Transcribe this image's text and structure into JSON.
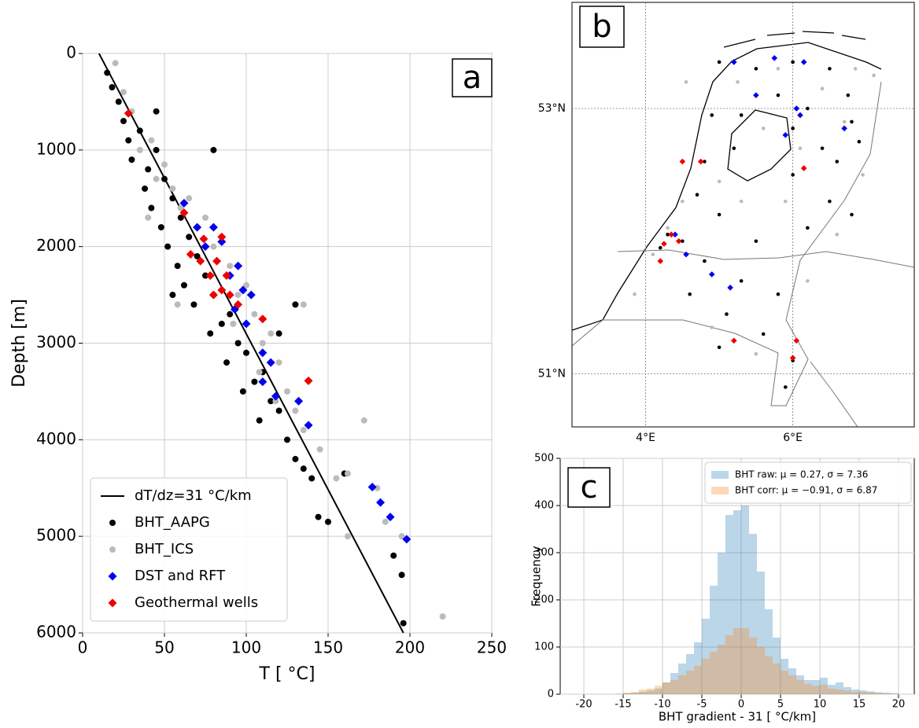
{
  "chart_data": [
    {
      "type": "scatter",
      "label": "a",
      "xlabel": "T [ °C]",
      "ylabel": "Depth [m]",
      "xlim": [
        0,
        250
      ],
      "ylim": [
        6000,
        0
      ],
      "xticks": [
        0,
        50,
        100,
        150,
        200,
        250
      ],
      "yticks": [
        0,
        1000,
        2000,
        3000,
        4000,
        5000,
        6000
      ],
      "grid": true,
      "legend": "lower left",
      "series": [
        {
          "name": "dT/dz=31 °C/km",
          "color": "#000000",
          "marker": "line",
          "x": [
            10,
            196
          ],
          "values": [
            0,
            6000
          ]
        },
        {
          "name": "BHT_AAPG",
          "color": "#000000",
          "marker": "circle",
          "x": [
            15,
            18,
            22,
            25,
            28,
            35,
            30,
            40,
            45,
            38,
            50,
            42,
            55,
            48,
            60,
            52,
            65,
            58,
            70,
            62,
            75,
            68,
            80,
            85,
            78,
            90,
            95,
            88,
            100,
            105,
            98,
            110,
            115,
            108,
            120,
            125,
            130,
            135,
            140,
            144,
            150,
            160,
            190,
            195,
            196,
            45,
            80,
            130,
            120,
            55
          ],
          "values": [
            200,
            350,
            500,
            700,
            900,
            800,
            1100,
            1200,
            1000,
            1400,
            1300,
            1600,
            1500,
            1800,
            1700,
            2000,
            1900,
            2200,
            2100,
            2400,
            2300,
            2600,
            2500,
            2800,
            2900,
            2700,
            3000,
            3200,
            3100,
            3400,
            3500,
            3300,
            3600,
            3800,
            3700,
            4000,
            4200,
            4300,
            4400,
            4800,
            4850,
            4350,
            5200,
            5400,
            5900,
            600,
            1000,
            2600,
            2900,
            2500
          ]
        },
        {
          "name": "BHT_ICS",
          "color": "#bbbbbb",
          "marker": "circle",
          "x": [
            20,
            25,
            30,
            35,
            42,
            45,
            50,
            55,
            60,
            65,
            70,
            75,
            80,
            85,
            78,
            90,
            95,
            100,
            92,
            105,
            110,
            115,
            108,
            120,
            125,
            118,
            130,
            135,
            145,
            155,
            162,
            172,
            180,
            185,
            195,
            220,
            135,
            58,
            40,
            162
          ],
          "values": [
            100,
            400,
            600,
            1000,
            900,
            1300,
            1150,
            1400,
            1600,
            1500,
            1800,
            1700,
            2000,
            1900,
            2300,
            2200,
            2500,
            2400,
            2800,
            2700,
            3000,
            2900,
            3300,
            3200,
            3500,
            3600,
            3700,
            3900,
            4100,
            4400,
            4350,
            3800,
            4500,
            4850,
            5000,
            5830,
            2600,
            2600,
            1700,
            5000
          ]
        },
        {
          "name": "DST and RFT",
          "color": "#0000ee",
          "marker": "diamond",
          "x": [
            62,
            70,
            75,
            80,
            85,
            90,
            95,
            98,
            93,
            100,
            103,
            110,
            115,
            110,
            118,
            132,
            138,
            177,
            182,
            188,
            198
          ],
          "values": [
            1550,
            1800,
            2000,
            1800,
            1950,
            2300,
            2200,
            2450,
            2650,
            2800,
            2500,
            3100,
            3200,
            3400,
            3550,
            3600,
            3850,
            4490,
            4650,
            4800,
            5030
          ]
        },
        {
          "name": "Geothermal wells",
          "color": "#ee0000",
          "marker": "diamond",
          "x": [
            28,
            62,
            74,
            85,
            66,
            82,
            78,
            88,
            85,
            80,
            90,
            110,
            138,
            72,
            95
          ],
          "values": [
            620,
            1650,
            1920,
            1900,
            2080,
            2150,
            2300,
            2300,
            2450,
            2500,
            2500,
            2750,
            3390,
            2150,
            2600
          ]
        }
      ]
    },
    {
      "type": "scatter",
      "label": "b",
      "xlim": [
        3.0,
        7.65
      ],
      "ylim": [
        50.6,
        53.8
      ],
      "xticks": [
        {
          "value": 4,
          "label": "4°E"
        },
        {
          "value": 6,
          "label": "6°E"
        }
      ],
      "yticks": [
        {
          "value": 51,
          "label": "51°N"
        },
        {
          "value": 53,
          "label": "53°N"
        }
      ],
      "grid": true,
      "series": [
        {
          "color": "#000000",
          "marker": "circle",
          "x": [
            5.0,
            5.5,
            6.0,
            6.5,
            5.8,
            6.2,
            6.8,
            6.9,
            6.6,
            6.0,
            5.2,
            4.8,
            4.7,
            5.0,
            6.5,
            6.8,
            6.2,
            5.5,
            4.5,
            4.3,
            4.2,
            4.8,
            5.3,
            5.8,
            5.1,
            5.6,
            5.0,
            6.0,
            5.9,
            4.6,
            6.0,
            5.3,
            4.9,
            6.4,
            6.75
          ],
          "values": [
            53.35,
            53.3,
            53.35,
            53.3,
            53.1,
            53.0,
            52.9,
            52.75,
            52.6,
            52.5,
            52.7,
            52.6,
            52.35,
            52.2,
            52.3,
            52.2,
            52.1,
            52.0,
            52.0,
            52.05,
            51.95,
            51.85,
            51.7,
            51.6,
            51.45,
            51.3,
            51.2,
            51.1,
            50.9,
            51.6,
            52.85,
            52.95,
            52.95,
            52.7,
            53.1
          ]
        },
        {
          "color": "#bbbbbb",
          "marker": "circle",
          "x": [
            4.55,
            5.25,
            6.85,
            6.4,
            5.6,
            6.1,
            6.95,
            5.9,
            5.3,
            4.5,
            4.3,
            4.1,
            4.9,
            6.2,
            5.5,
            4.9,
            3.85,
            6.7,
            7.1,
            5.8,
            6.6,
            5.0
          ],
          "values": [
            53.2,
            53.2,
            53.3,
            53.15,
            52.85,
            52.7,
            52.5,
            52.3,
            52.3,
            52.3,
            52.1,
            51.9,
            51.75,
            51.7,
            51.15,
            51.35,
            51.6,
            52.9,
            53.25,
            53.3,
            52.05,
            52.45
          ]
        },
        {
          "color": "#0000ee",
          "marker": "diamond",
          "x": [
            5.2,
            5.75,
            6.15,
            5.5,
            6.05,
            6.7,
            5.9,
            4.55,
            4.9,
            5.15,
            6.1,
            4.4
          ],
          "values": [
            53.35,
            53.38,
            53.35,
            53.1,
            53.0,
            52.85,
            52.8,
            51.9,
            51.75,
            51.65,
            52.95,
            52.05
          ]
        },
        {
          "color": "#ee0000",
          "marker": "diamond",
          "x": [
            4.35,
            4.25,
            4.45,
            4.2,
            4.75,
            6.15,
            5.2,
            6.05,
            6.0,
            4.5
          ],
          "values": [
            52.05,
            51.98,
            52.0,
            51.85,
            52.6,
            52.55,
            51.25,
            51.25,
            51.12,
            52.6
          ]
        }
      ]
    },
    {
      "type": "histogram",
      "label": "c",
      "xlabel": "BHT gradient - 31 [ °C/km]",
      "ylabel": "Frequency",
      "xlim": [
        -23,
        22
      ],
      "ylim": [
        0,
        500
      ],
      "xticks": [
        -20,
        -15,
        -10,
        -5,
        0,
        5,
        10,
        15,
        20
      ],
      "yticks": [
        0,
        100,
        200,
        300,
        400,
        500
      ],
      "grid": true,
      "legend": "upper right",
      "alpha": 0.3,
      "bins": [
        -20,
        -19,
        -18,
        -17,
        -16,
        -15,
        -14,
        -13,
        -12,
        -11,
        -10,
        -9,
        -8,
        -7,
        -6,
        -5,
        -4,
        -3,
        -2,
        -1,
        0,
        1,
        2,
        3,
        4,
        5,
        6,
        7,
        8,
        9,
        10,
        11,
        12,
        13,
        14,
        15,
        16,
        17,
        18,
        19,
        20
      ],
      "series": [
        {
          "name": "BHT raw: μ = 0.27, σ = 7.36",
          "color": "#1f77b4",
          "values": [
            0,
            0,
            0,
            0,
            1,
            2,
            3,
            5,
            8,
            12,
            25,
            45,
            65,
            85,
            110,
            160,
            230,
            300,
            380,
            390,
            400,
            340,
            260,
            180,
            120,
            75,
            55,
            40,
            30,
            30,
            35,
            20,
            25,
            15,
            10,
            8,
            6,
            4,
            3,
            2
          ]
        },
        {
          "name": "BHT corr: μ = −0.91, σ = 6.87",
          "color": "#ff7f0e",
          "values": [
            0,
            0,
            0,
            0,
            0,
            3,
            5,
            10,
            12,
            18,
            25,
            30,
            40,
            50,
            60,
            75,
            90,
            105,
            125,
            140,
            140,
            120,
            100,
            80,
            65,
            50,
            40,
            30,
            22,
            18,
            20,
            12,
            10,
            8,
            5,
            5,
            4,
            3,
            2,
            1
          ]
        }
      ]
    }
  ]
}
